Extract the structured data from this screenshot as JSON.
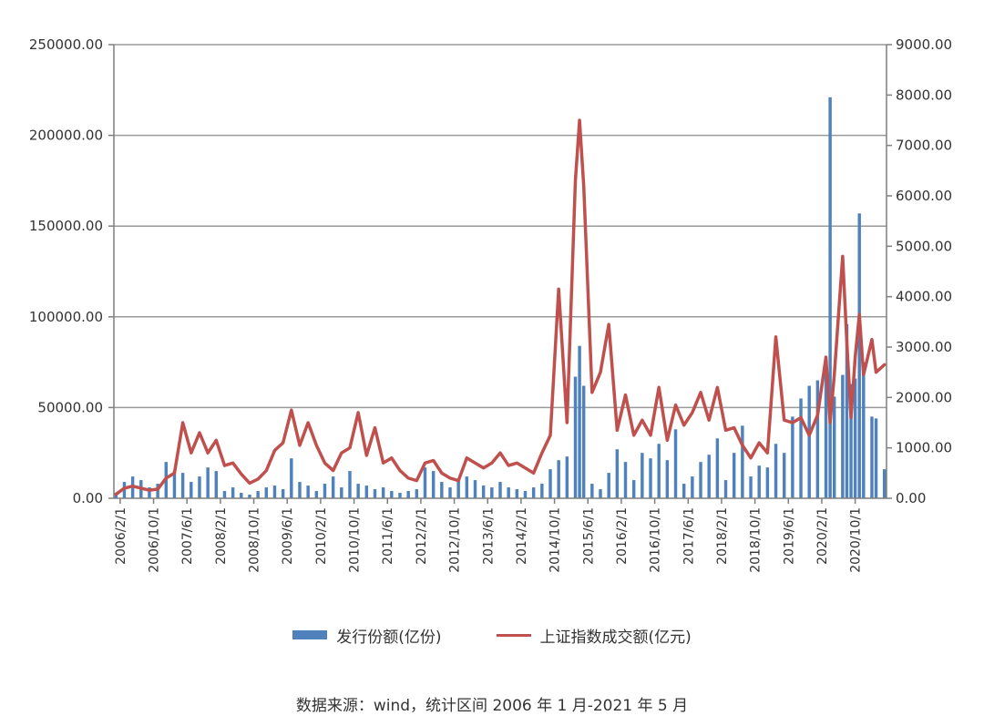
{
  "chart_data": {
    "type": "bar+line",
    "title": "",
    "left_axis": {
      "ylim": [
        0,
        250000
      ],
      "ticks": [
        "0.00",
        "50000.00",
        "100000.00",
        "150000.00",
        "200000.00",
        "250000.00"
      ]
    },
    "right_axis": {
      "ylim": [
        0,
        9000
      ],
      "ticks": [
        "0.00",
        "1000.00",
        "2000.00",
        "3000.00",
        "4000.00",
        "5000.00",
        "6000.00",
        "7000.00",
        "8000.00",
        "9000.00"
      ]
    },
    "x_range": [
      "2006-01",
      "2021-05"
    ],
    "x_tick_labels": [
      "2006/2/1",
      "2006/10/1",
      "2007/6/1",
      "2008/2/1",
      "2008/10/1",
      "2009/6/1",
      "2010/2/1",
      "2010/10/1",
      "2011/6/1",
      "2012/2/1",
      "2012/10/1",
      "2013/6/1",
      "2014/2/1",
      "2014/10/1",
      "2015/6/1",
      "2016/2/1",
      "2016/10/1",
      "2017/6/1",
      "2018/2/1",
      "2018/10/1",
      "2019/6/1",
      "2020/2/1",
      "2020/10/1"
    ],
    "grid": true,
    "legend_position": "bottom",
    "series": [
      {
        "name": "发行份额(亿份)",
        "kind": "bar",
        "axis": "left",
        "color": "#4f81bd",
        "points": [
          [
            "2006-01",
            3000
          ],
          [
            "2006-03",
            9000
          ],
          [
            "2006-05",
            12000
          ],
          [
            "2006-07",
            10000
          ],
          [
            "2006-09",
            6000
          ],
          [
            "2006-11",
            8000
          ],
          [
            "2007-01",
            20000
          ],
          [
            "2007-03",
            15000
          ],
          [
            "2007-05",
            14000
          ],
          [
            "2007-07",
            9000
          ],
          [
            "2007-09",
            12000
          ],
          [
            "2007-11",
            17000
          ],
          [
            "2008-01",
            15000
          ],
          [
            "2008-03",
            4000
          ],
          [
            "2008-05",
            6000
          ],
          [
            "2008-07",
            3000
          ],
          [
            "2008-09",
            2000
          ],
          [
            "2008-11",
            4000
          ],
          [
            "2009-01",
            6000
          ],
          [
            "2009-03",
            7000
          ],
          [
            "2009-05",
            5000
          ],
          [
            "2009-07",
            22000
          ],
          [
            "2009-09",
            9000
          ],
          [
            "2009-11",
            7000
          ],
          [
            "2010-01",
            4000
          ],
          [
            "2010-03",
            8000
          ],
          [
            "2010-05",
            12000
          ],
          [
            "2010-07",
            6000
          ],
          [
            "2010-09",
            15000
          ],
          [
            "2010-11",
            8000
          ],
          [
            "2011-01",
            7000
          ],
          [
            "2011-03",
            5000
          ],
          [
            "2011-05",
            6000
          ],
          [
            "2011-07",
            4000
          ],
          [
            "2011-09",
            3000
          ],
          [
            "2011-11",
            4000
          ],
          [
            "2012-01",
            5000
          ],
          [
            "2012-03",
            17000
          ],
          [
            "2012-05",
            15000
          ],
          [
            "2012-07",
            9000
          ],
          [
            "2012-09",
            6000
          ],
          [
            "2012-11",
            10000
          ],
          [
            "2013-01",
            12000
          ],
          [
            "2013-03",
            10000
          ],
          [
            "2013-05",
            7000
          ],
          [
            "2013-07",
            6000
          ],
          [
            "2013-09",
            9000
          ],
          [
            "2013-11",
            6000
          ],
          [
            "2014-01",
            5000
          ],
          [
            "2014-03",
            4000
          ],
          [
            "2014-05",
            6000
          ],
          [
            "2014-07",
            8000
          ],
          [
            "2014-09",
            16000
          ],
          [
            "2014-11",
            21000
          ],
          [
            "2015-01",
            23000
          ],
          [
            "2015-03",
            67000
          ],
          [
            "2015-04",
            84000
          ],
          [
            "2015-05",
            62000
          ],
          [
            "2015-07",
            8000
          ],
          [
            "2015-09",
            5000
          ],
          [
            "2015-11",
            14000
          ],
          [
            "2016-01",
            27000
          ],
          [
            "2016-03",
            20000
          ],
          [
            "2016-05",
            10000
          ],
          [
            "2016-07",
            25000
          ],
          [
            "2016-09",
            22000
          ],
          [
            "2016-11",
            30000
          ],
          [
            "2017-01",
            21000
          ],
          [
            "2017-03",
            38000
          ],
          [
            "2017-05",
            8000
          ],
          [
            "2017-07",
            12000
          ],
          [
            "2017-09",
            20000
          ],
          [
            "2017-11",
            24000
          ],
          [
            "2018-01",
            33000
          ],
          [
            "2018-03",
            10000
          ],
          [
            "2018-05",
            25000
          ],
          [
            "2018-07",
            40000
          ],
          [
            "2018-09",
            12000
          ],
          [
            "2018-11",
            18000
          ],
          [
            "2019-01",
            17000
          ],
          [
            "2019-03",
            30000
          ],
          [
            "2019-05",
            25000
          ],
          [
            "2019-07",
            45000
          ],
          [
            "2019-09",
            55000
          ],
          [
            "2019-11",
            62000
          ],
          [
            "2020-01",
            65000
          ],
          [
            "2020-03",
            72000
          ],
          [
            "2020-04",
            221000
          ],
          [
            "2020-05",
            56000
          ],
          [
            "2020-07",
            68000
          ],
          [
            "2020-08",
            96000
          ],
          [
            "2020-09",
            63000
          ],
          [
            "2020-10",
            66000
          ],
          [
            "2020-11",
            157000
          ],
          [
            "2020-12",
            75000
          ],
          [
            "2021-02",
            45000
          ],
          [
            "2021-03",
            44000
          ],
          [
            "2021-05",
            16000
          ]
        ]
      },
      {
        "name": "上证指数成交额(亿元)",
        "kind": "line",
        "axis": "right",
        "color": "#c0504d",
        "points": [
          [
            "2006-01",
            80
          ],
          [
            "2006-03",
            200
          ],
          [
            "2006-05",
            240
          ],
          [
            "2006-07",
            200
          ],
          [
            "2006-09",
            160
          ],
          [
            "2006-11",
            180
          ],
          [
            "2007-01",
            400
          ],
          [
            "2007-03",
            500
          ],
          [
            "2007-05",
            1500
          ],
          [
            "2007-07",
            900
          ],
          [
            "2007-09",
            1300
          ],
          [
            "2007-11",
            900
          ],
          [
            "2008-01",
            1150
          ],
          [
            "2008-03",
            650
          ],
          [
            "2008-05",
            700
          ],
          [
            "2008-07",
            480
          ],
          [
            "2008-09",
            300
          ],
          [
            "2008-11",
            380
          ],
          [
            "2009-01",
            550
          ],
          [
            "2009-03",
            950
          ],
          [
            "2009-05",
            1100
          ],
          [
            "2009-07",
            1750
          ],
          [
            "2009-09",
            1050
          ],
          [
            "2009-11",
            1500
          ],
          [
            "2010-01",
            1050
          ],
          [
            "2010-03",
            700
          ],
          [
            "2010-05",
            550
          ],
          [
            "2010-07",
            900
          ],
          [
            "2010-09",
            1000
          ],
          [
            "2010-11",
            1700
          ],
          [
            "2011-01",
            850
          ],
          [
            "2011-03",
            1400
          ],
          [
            "2011-05",
            700
          ],
          [
            "2011-07",
            800
          ],
          [
            "2011-09",
            550
          ],
          [
            "2011-11",
            400
          ],
          [
            "2012-01",
            350
          ],
          [
            "2012-03",
            700
          ],
          [
            "2012-05",
            750
          ],
          [
            "2012-07",
            500
          ],
          [
            "2012-09",
            400
          ],
          [
            "2012-11",
            350
          ],
          [
            "2013-01",
            800
          ],
          [
            "2013-03",
            700
          ],
          [
            "2013-05",
            600
          ],
          [
            "2013-07",
            700
          ],
          [
            "2013-09",
            900
          ],
          [
            "2013-11",
            650
          ],
          [
            "2014-01",
            700
          ],
          [
            "2014-03",
            600
          ],
          [
            "2014-05",
            500
          ],
          [
            "2014-07",
            900
          ],
          [
            "2014-09",
            1250
          ],
          [
            "2014-11",
            4150
          ],
          [
            "2015-01",
            1500
          ],
          [
            "2015-03",
            6300
          ],
          [
            "2015-04",
            7500
          ],
          [
            "2015-05",
            6200
          ],
          [
            "2015-07",
            2100
          ],
          [
            "2015-09",
            2500
          ],
          [
            "2015-11",
            3450
          ],
          [
            "2016-01",
            1350
          ],
          [
            "2016-03",
            2050
          ],
          [
            "2016-05",
            1250
          ],
          [
            "2016-07",
            1550
          ],
          [
            "2016-09",
            1250
          ],
          [
            "2016-11",
            2200
          ],
          [
            "2017-01",
            1150
          ],
          [
            "2017-03",
            1850
          ],
          [
            "2017-05",
            1450
          ],
          [
            "2017-07",
            1700
          ],
          [
            "2017-09",
            2100
          ],
          [
            "2017-11",
            1550
          ],
          [
            "2018-01",
            2200
          ],
          [
            "2018-03",
            1350
          ],
          [
            "2018-05",
            1400
          ],
          [
            "2018-07",
            1050
          ],
          [
            "2018-09",
            800
          ],
          [
            "2018-11",
            1100
          ],
          [
            "2019-01",
            900
          ],
          [
            "2019-03",
            3200
          ],
          [
            "2019-05",
            1550
          ],
          [
            "2019-07",
            1500
          ],
          [
            "2019-09",
            1600
          ],
          [
            "2019-11",
            1250
          ],
          [
            "2020-01",
            1650
          ],
          [
            "2020-03",
            2800
          ],
          [
            "2020-04",
            1500
          ],
          [
            "2020-05",
            2450
          ],
          [
            "2020-07",
            4800
          ],
          [
            "2020-08",
            3100
          ],
          [
            "2020-09",
            1600
          ],
          [
            "2020-10",
            2800
          ],
          [
            "2020-11",
            3650
          ],
          [
            "2020-12",
            2450
          ],
          [
            "2021-02",
            3150
          ],
          [
            "2021-03",
            2500
          ],
          [
            "2021-05",
            2650
          ]
        ]
      }
    ]
  },
  "source_note": "数据来源：wind，统计区间 2006 年 1 月-2021 年 5 月"
}
